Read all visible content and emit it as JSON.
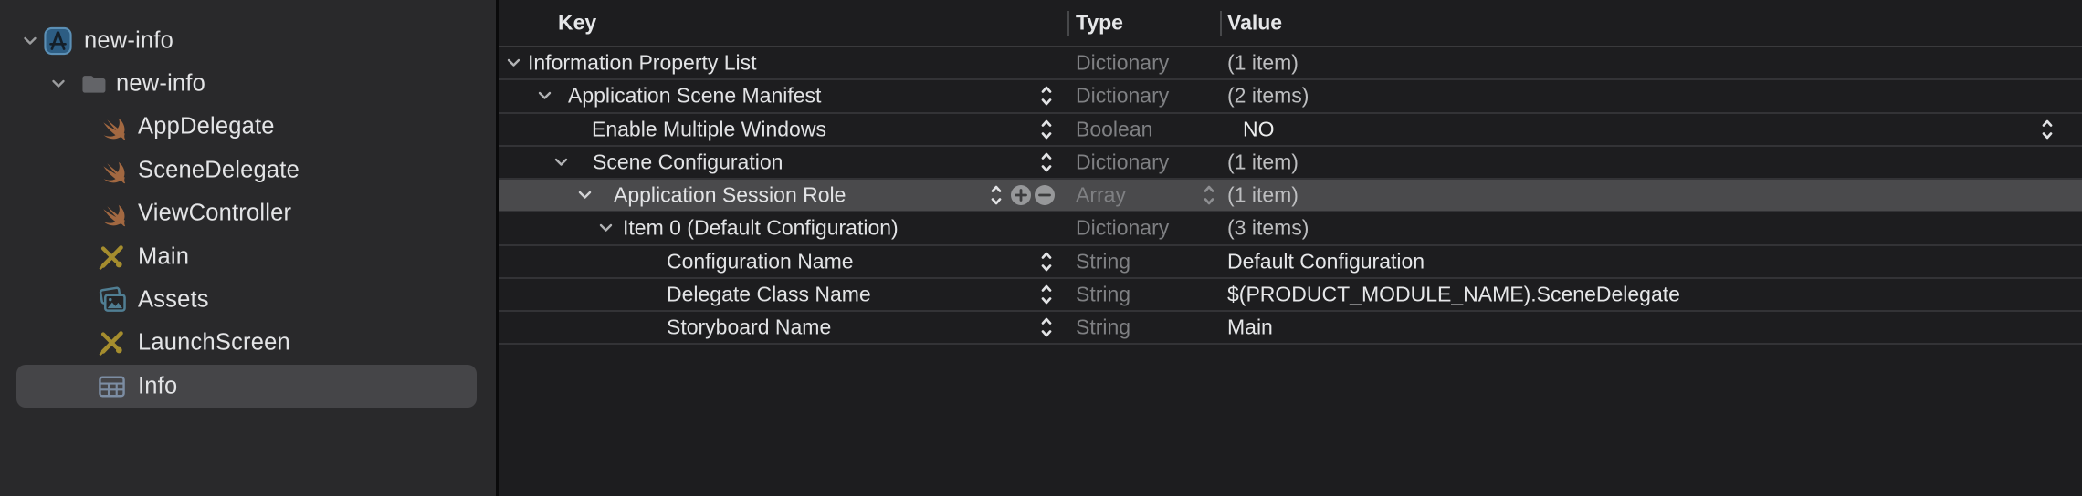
{
  "sidebar": {
    "items": [
      {
        "label": "new-info",
        "icon": "xcode-project-icon",
        "level": 0,
        "expanded": true,
        "selected": false
      },
      {
        "label": "new-info",
        "icon": "folder-icon",
        "level": 1,
        "expanded": true,
        "selected": false
      },
      {
        "label": "AppDelegate",
        "icon": "swift-file-icon",
        "level": 2,
        "expanded": false,
        "selected": false
      },
      {
        "label": "SceneDelegate",
        "icon": "swift-file-icon",
        "level": 2,
        "expanded": false,
        "selected": false
      },
      {
        "label": "ViewController",
        "icon": "swift-file-icon",
        "level": 2,
        "expanded": false,
        "selected": false
      },
      {
        "label": "Main",
        "icon": "storyboard-icon",
        "level": 2,
        "expanded": false,
        "selected": false
      },
      {
        "label": "Assets",
        "icon": "assets-icon",
        "level": 2,
        "expanded": false,
        "selected": false
      },
      {
        "label": "LaunchScreen",
        "icon": "storyboard-icon",
        "level": 2,
        "expanded": false,
        "selected": false
      },
      {
        "label": "Info",
        "icon": "plist-icon",
        "level": 2,
        "expanded": false,
        "selected": true
      }
    ]
  },
  "plist_editor": {
    "columns": [
      "Key",
      "Type",
      "Value"
    ],
    "rows": [
      {
        "key": "Information Property List",
        "type": "Dictionary",
        "value": "(1 item)",
        "value_kind": "count",
        "level": 0,
        "expanded": true,
        "key_stepper": false,
        "selected": false,
        "add_remove": false,
        "type_stepper": false,
        "value_stepper": false
      },
      {
        "key": "Application Scene Manifest",
        "type": "Dictionary",
        "value": "(2 items)",
        "value_kind": "count",
        "level": 1,
        "expanded": true,
        "key_stepper": true,
        "selected": false,
        "add_remove": false,
        "type_stepper": false,
        "value_stepper": false
      },
      {
        "key": "Enable Multiple Windows",
        "type": "Boolean",
        "value": "NO",
        "value_kind": "enum",
        "level": 2,
        "expanded": false,
        "key_stepper": true,
        "selected": false,
        "add_remove": false,
        "type_stepper": false,
        "value_stepper": true
      },
      {
        "key": "Scene Configuration",
        "type": "Dictionary",
        "value": "(1 item)",
        "value_kind": "count",
        "level": 2,
        "expanded": true,
        "key_stepper": true,
        "selected": false,
        "add_remove": false,
        "type_stepper": false,
        "value_stepper": false
      },
      {
        "key": "Application Session Role",
        "type": "Array",
        "value": "(1 item)",
        "value_kind": "count",
        "level": 3,
        "expanded": true,
        "key_stepper": true,
        "selected": true,
        "add_remove": true,
        "type_stepper": true,
        "value_stepper": false
      },
      {
        "key": "Item 0 (Default Configuration)",
        "type": "Dictionary",
        "value": "(3 items)",
        "value_kind": "count",
        "level": 4,
        "expanded": true,
        "key_stepper": false,
        "selected": false,
        "add_remove": false,
        "type_stepper": false,
        "value_stepper": false
      },
      {
        "key": "Configuration Name",
        "type": "String",
        "value": "Default Configuration",
        "value_kind": "text",
        "level": 5,
        "expanded": false,
        "key_stepper": true,
        "selected": false,
        "add_remove": false,
        "type_stepper": false,
        "value_stepper": false
      },
      {
        "key": "Delegate Class Name",
        "type": "String",
        "value": "$(PRODUCT_MODULE_NAME).SceneDelegate",
        "value_kind": "text",
        "level": 5,
        "expanded": false,
        "key_stepper": true,
        "selected": false,
        "add_remove": false,
        "type_stepper": false,
        "value_stepper": false
      },
      {
        "key": "Storyboard Name",
        "type": "String",
        "value": "Main",
        "value_kind": "text",
        "level": 5,
        "expanded": false,
        "key_stepper": true,
        "selected": false,
        "add_remove": false,
        "type_stepper": false,
        "value_stepper": false
      }
    ]
  },
  "colors": {
    "sidebar_background": "#29292b",
    "sidebar_selection": "#454548",
    "editor_background": "#1d1d1f",
    "row_selection": "#4a4a4c",
    "type_text_gray": "#7f8083",
    "project_icon_blue": "#2d5d83",
    "project_icon_border": "#5b8fb5",
    "folder_icon_gray": "#636468",
    "swift_icon_brown": "#a26841",
    "storyboard_icon_olive": "#a58d2e",
    "assets_icon_teal": "#507e93",
    "plist_icon_slate": "#7c8da3"
  }
}
